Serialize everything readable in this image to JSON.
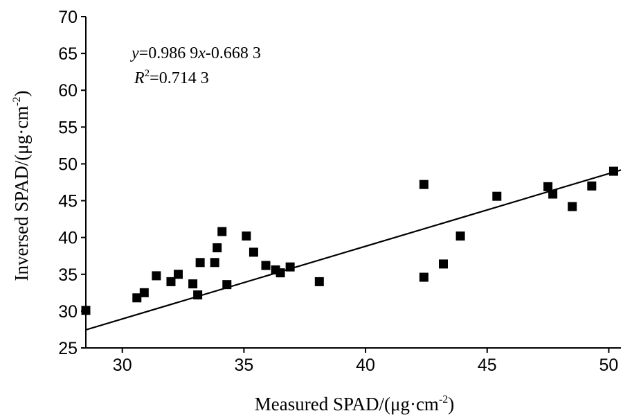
{
  "chart_data": {
    "type": "scatter",
    "title": "",
    "xlabel": "Measured SPAD/(μg·cm",
    "xlabel_sup": "-2",
    "xlabel_close": ")",
    "ylabel": "Inversed SPAD/(μg·cm",
    "ylabel_sup": "-2",
    "ylabel_close": ")",
    "xlim": [
      28.5,
      50.5
    ],
    "ylim": [
      25,
      70
    ],
    "xticks": [
      30,
      35,
      40,
      45,
      50
    ],
    "yticks": [
      25,
      30,
      35,
      40,
      45,
      50,
      55,
      60,
      65,
      70
    ],
    "grid": false,
    "legend": "none",
    "marker_color": "#000000",
    "line_color": "#000000",
    "equation": {
      "y": "y",
      "eq_mid": "=0.986 9",
      "x": "x",
      "eq_end": "-0.668 3"
    },
    "r2": {
      "r": "R",
      "sup": "2",
      "value": "=0.714 3"
    },
    "fit": {
      "slope": 0.9869,
      "intercept": -0.6683
    },
    "points": [
      [
        28.5,
        30.1
      ],
      [
        30.6,
        31.8
      ],
      [
        30.9,
        32.5
      ],
      [
        31.4,
        34.8
      ],
      [
        32.0,
        34.0
      ],
      [
        32.3,
        35.0
      ],
      [
        32.9,
        33.7
      ],
      [
        33.1,
        32.2
      ],
      [
        33.2,
        36.6
      ],
      [
        33.8,
        36.6
      ],
      [
        33.9,
        38.6
      ],
      [
        34.1,
        40.8
      ],
      [
        34.3,
        33.6
      ],
      [
        35.1,
        40.2
      ],
      [
        35.4,
        38.0
      ],
      [
        35.9,
        36.2
      ],
      [
        36.3,
        35.6
      ],
      [
        36.5,
        35.2
      ],
      [
        36.9,
        36.0
      ],
      [
        38.1,
        34.0
      ],
      [
        42.4,
        47.2
      ],
      [
        42.4,
        34.6
      ],
      [
        43.2,
        36.4
      ],
      [
        43.9,
        40.2
      ],
      [
        45.4,
        45.6
      ],
      [
        47.5,
        46.9
      ],
      [
        47.7,
        45.9
      ],
      [
        48.5,
        44.2
      ],
      [
        49.3,
        47.0
      ],
      [
        50.2,
        49.0
      ]
    ]
  }
}
